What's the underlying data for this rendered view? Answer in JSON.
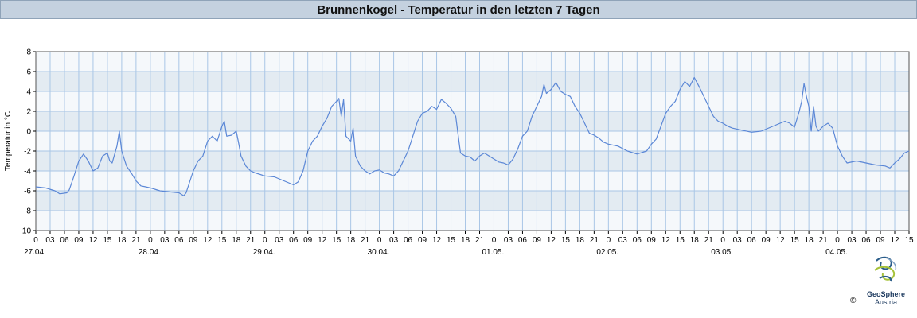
{
  "colors": {
    "line": "#5b87d6",
    "band_light": "#f5f8fb",
    "band_dark": "#e3ebf2",
    "grid": "#a9c6e6"
  },
  "logo": {
    "icon": "geosphere-swirl-icon",
    "name": "GeoSphere",
    "sub": "Austria",
    "copyright": "©"
  },
  "chart_data": {
    "type": "line",
    "title": "Brunnenkogel - Temperatur in den letzten 7 Tagen",
    "xlabel": "",
    "ylabel": "Temperatur in °C",
    "x_unit": "hours since 27.04. 00:00",
    "xlim": [
      0,
      183
    ],
    "ylim": [
      -10,
      8
    ],
    "y_ticks": [
      8,
      6,
      4,
      2,
      0,
      -2,
      -4,
      -6,
      -8,
      -10
    ],
    "x_tick_hours": [
      "0",
      "03",
      "06",
      "09",
      "12",
      "15",
      "18",
      "21"
    ],
    "day_labels": [
      "27.04.",
      "28.04.",
      "29.04.",
      "30.04.",
      "01.05.",
      "02.05.",
      "03.05.",
      "04.05."
    ],
    "last_day_hours": [
      "0",
      "03",
      "06",
      "09",
      "12",
      "15"
    ],
    "series": [
      {
        "name": "",
        "points": [
          [
            0,
            -5.6
          ],
          [
            2,
            -5.7
          ],
          [
            4,
            -6.0
          ],
          [
            5,
            -6.3
          ],
          [
            6.5,
            -6.2
          ],
          [
            7,
            -5.9
          ],
          [
            8,
            -4.5
          ],
          [
            9,
            -3.0
          ],
          [
            10,
            -2.3
          ],
          [
            11,
            -3.0
          ],
          [
            12,
            -4.0
          ],
          [
            13,
            -3.7
          ],
          [
            14,
            -2.5
          ],
          [
            15,
            -2.2
          ],
          [
            15.5,
            -3.0
          ],
          [
            16,
            -3.2
          ],
          [
            17,
            -1.5
          ],
          [
            17.5,
            0.0
          ],
          [
            18,
            -2.0
          ],
          [
            19,
            -3.5
          ],
          [
            20,
            -4.2
          ],
          [
            21,
            -5.0
          ],
          [
            22,
            -5.5
          ],
          [
            23,
            -5.6
          ],
          [
            24,
            -5.7
          ],
          [
            26,
            -6.0
          ],
          [
            28,
            -6.1
          ],
          [
            30,
            -6.2
          ],
          [
            31,
            -6.5
          ],
          [
            31.5,
            -6.2
          ],
          [
            33,
            -4.0
          ],
          [
            34,
            -3.0
          ],
          [
            35,
            -2.5
          ],
          [
            36,
            -1.0
          ],
          [
            37,
            -0.5
          ],
          [
            38,
            -1.0
          ],
          [
            39,
            0.5
          ],
          [
            39.5,
            1.0
          ],
          [
            40,
            -0.5
          ],
          [
            41,
            -0.4
          ],
          [
            42,
            0.0
          ],
          [
            42.5,
            -1.2
          ],
          [
            43,
            -2.5
          ],
          [
            44,
            -3.5
          ],
          [
            45,
            -4.0
          ],
          [
            46,
            -4.2
          ],
          [
            48,
            -4.5
          ],
          [
            50,
            -4.6
          ],
          [
            52,
            -5.0
          ],
          [
            54,
            -5.4
          ],
          [
            55,
            -5.1
          ],
          [
            56,
            -4.0
          ],
          [
            57,
            -2.0
          ],
          [
            58,
            -1.0
          ],
          [
            59,
            -0.5
          ],
          [
            60,
            0.5
          ],
          [
            61,
            1.3
          ],
          [
            62,
            2.5
          ],
          [
            63,
            3.0
          ],
          [
            63.5,
            3.3
          ],
          [
            64,
            1.5
          ],
          [
            64.5,
            3.2
          ],
          [
            65,
            -0.5
          ],
          [
            66,
            -1.0
          ],
          [
            66.5,
            0.3
          ],
          [
            67,
            -2.5
          ],
          [
            68,
            -3.5
          ],
          [
            69,
            -4.0
          ],
          [
            70,
            -4.3
          ],
          [
            71,
            -4.0
          ],
          [
            72,
            -3.9
          ],
          [
            73,
            -4.2
          ],
          [
            74,
            -4.3
          ],
          [
            75,
            -4.5
          ],
          [
            76,
            -4.0
          ],
          [
            77,
            -3.0
          ],
          [
            78,
            -2.0
          ],
          [
            79,
            -0.5
          ],
          [
            80,
            1.0
          ],
          [
            81,
            1.8
          ],
          [
            82,
            2.0
          ],
          [
            83,
            2.5
          ],
          [
            84,
            2.2
          ],
          [
            85,
            3.2
          ],
          [
            86,
            2.8
          ],
          [
            87,
            2.3
          ],
          [
            88,
            1.5
          ],
          [
            89,
            -2.2
          ],
          [
            90,
            -2.5
          ],
          [
            91,
            -2.6
          ],
          [
            92,
            -3.0
          ],
          [
            93,
            -2.5
          ],
          [
            94,
            -2.2
          ],
          [
            95,
            -2.5
          ],
          [
            96,
            -2.8
          ],
          [
            97,
            -3.1
          ],
          [
            98,
            -3.2
          ],
          [
            99,
            -3.4
          ],
          [
            100,
            -2.8
          ],
          [
            101,
            -1.8
          ],
          [
            102,
            -0.5
          ],
          [
            103,
            0.0
          ],
          [
            104,
            1.5
          ],
          [
            105,
            2.5
          ],
          [
            106,
            3.5
          ],
          [
            106.5,
            4.7
          ],
          [
            107,
            3.8
          ],
          [
            108,
            4.2
          ],
          [
            109,
            4.9
          ],
          [
            110,
            4.0
          ],
          [
            111,
            3.7
          ],
          [
            112,
            3.5
          ],
          [
            113,
            2.5
          ],
          [
            114,
            1.8
          ],
          [
            115,
            0.8
          ],
          [
            116,
            -0.2
          ],
          [
            117,
            -0.4
          ],
          [
            118,
            -0.7
          ],
          [
            119,
            -1.1
          ],
          [
            120,
            -1.3
          ],
          [
            122,
            -1.5
          ],
          [
            124,
            -2.0
          ],
          [
            126,
            -2.3
          ],
          [
            128,
            -2.0
          ],
          [
            129,
            -1.3
          ],
          [
            130,
            -0.8
          ],
          [
            131,
            0.5
          ],
          [
            132,
            1.8
          ],
          [
            133,
            2.5
          ],
          [
            134,
            3.0
          ],
          [
            135,
            4.2
          ],
          [
            136,
            5.0
          ],
          [
            137,
            4.5
          ],
          [
            138,
            5.4
          ],
          [
            139,
            4.5
          ],
          [
            140,
            3.5
          ],
          [
            141,
            2.5
          ],
          [
            142,
            1.5
          ],
          [
            143,
            1.0
          ],
          [
            144,
            0.8
          ],
          [
            145,
            0.5
          ],
          [
            146,
            0.3
          ],
          [
            148,
            0.1
          ],
          [
            150,
            -0.1
          ],
          [
            152,
            0.0
          ],
          [
            154,
            0.4
          ],
          [
            156,
            0.8
          ],
          [
            157,
            1.0
          ],
          [
            158,
            0.8
          ],
          [
            159,
            0.4
          ],
          [
            160,
            2.0
          ],
          [
            160.5,
            3.0
          ],
          [
            161,
            4.8
          ],
          [
            161.5,
            3.5
          ],
          [
            162,
            2.5
          ],
          [
            162.5,
            0.0
          ],
          [
            163,
            2.5
          ],
          [
            163.5,
            0.5
          ],
          [
            164,
            0.0
          ],
          [
            165,
            0.5
          ],
          [
            166,
            0.8
          ],
          [
            167,
            0.3
          ],
          [
            168,
            -1.5
          ],
          [
            169,
            -2.5
          ],
          [
            170,
            -3.2
          ],
          [
            172,
            -3.0
          ],
          [
            174,
            -3.2
          ],
          [
            176,
            -3.4
          ],
          [
            178,
            -3.5
          ],
          [
            179,
            -3.7
          ],
          [
            180,
            -3.2
          ],
          [
            181,
            -2.8
          ],
          [
            182,
            -2.2
          ],
          [
            183,
            -2.0
          ]
        ]
      }
    ],
    "grid": true,
    "legend": "none"
  }
}
